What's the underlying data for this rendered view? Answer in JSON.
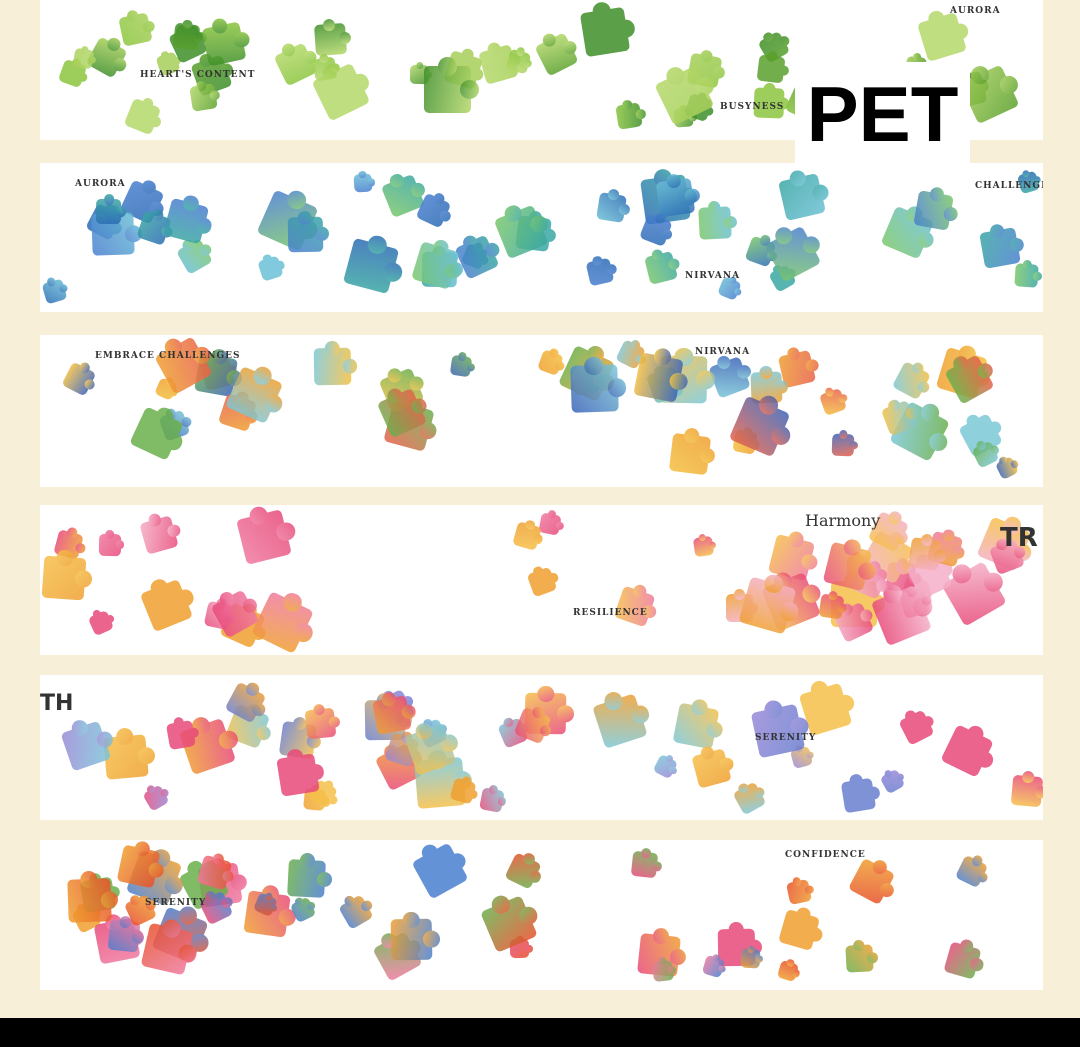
{
  "overlay_label": "PET",
  "strips": [
    {
      "colors": [
        "#8cc63f",
        "#5aa02c",
        "#b5d96a",
        "#3f8f2a",
        "#a8d05a"
      ],
      "labels": [
        {
          "text": "HEART'S CONTENT"
        },
        {
          "text": "BUSYNESS"
        },
        {
          "text": "AURORA"
        }
      ]
    },
    {
      "colors": [
        "#3aa7a3",
        "#2b6cb5",
        "#6cc0d6",
        "#4a7fd0",
        "#7bc86a"
      ],
      "labels": [
        {
          "text": "AURORA"
        },
        {
          "text": "NIRVANA"
        },
        {
          "text": "CHALLENGES"
        }
      ]
    },
    {
      "colors": [
        "#3b63b8",
        "#f0a030",
        "#7cc8d8",
        "#f5c040",
        "#6ab04c",
        "#e8604a"
      ],
      "labels": [
        {
          "text": "EMBRACE CHALLENGES"
        },
        {
          "text": "NIRVANA"
        }
      ]
    },
    {
      "colors": [
        "#e84a7a",
        "#f07aa0",
        "#f5b0c8",
        "#f0a030",
        "#f6c04a"
      ],
      "labels": [
        {
          "text": "RESILIENCE"
        },
        {
          "text": "Harmony"
        },
        {
          "text": "TR"
        }
      ]
    },
    {
      "colors": [
        "#f0a030",
        "#f6c04a",
        "#6a7fd0",
        "#e84a7a",
        "#9a8ad8",
        "#7cc8d8"
      ],
      "labels": [
        {
          "text": "TH"
        },
        {
          "text": "SERENITY"
        }
      ]
    },
    {
      "colors": [
        "#e84a7a",
        "#f07aa0",
        "#4a7fd0",
        "#f0a030",
        "#6ab04c",
        "#e8502a"
      ],
      "labels": [
        {
          "text": "SERENITY"
        },
        {
          "text": "CONFIDENCE"
        }
      ]
    }
  ]
}
